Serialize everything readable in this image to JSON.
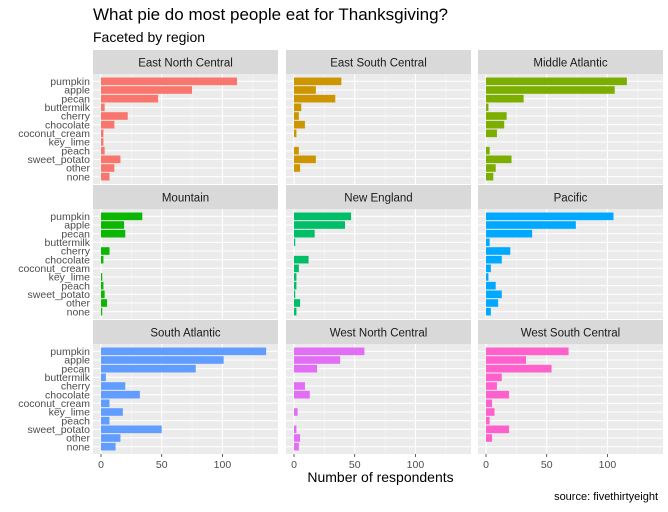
{
  "chart_data": {
    "type": "bar",
    "orientation": "horizontal",
    "title": "What pie do most people eat for Thanksgiving?",
    "subtitle": "Faceted by region",
    "xlabel": "Number of respondents",
    "ylabel": "",
    "caption": "source: fivethirtyeight",
    "xlim": [
      0,
      140
    ],
    "x_ticks": [
      0,
      50,
      100
    ],
    "categories": [
      "pumpkin",
      "apple",
      "pecan",
      "buttermilk",
      "cherry",
      "chocolate",
      "coconut_cream",
      "key_lime",
      "peach",
      "sweet_potato",
      "other",
      "none"
    ],
    "grid": true,
    "legend": "none",
    "facets": [
      {
        "name": "East North Central",
        "color": "#F8766D",
        "values": [
          112,
          75,
          47,
          3,
          22,
          11,
          2,
          2,
          3,
          16,
          11,
          7
        ]
      },
      {
        "name": "East South Central",
        "color": "#CD9600",
        "values": [
          39,
          18,
          34,
          6,
          4,
          9,
          2,
          0,
          4,
          18,
          5,
          0
        ]
      },
      {
        "name": "Middle Atlantic",
        "color": "#7CAE00",
        "values": [
          116,
          106,
          31,
          2,
          17,
          15,
          9,
          0,
          3,
          21,
          8,
          6
        ]
      },
      {
        "name": "Mountain",
        "color": "#0CB702",
        "values": [
          34,
          19,
          20,
          0,
          7,
          2,
          0,
          1,
          2,
          3,
          5,
          1
        ]
      },
      {
        "name": "New England",
        "color": "#00BE67",
        "values": [
          47,
          42,
          17,
          1,
          0,
          12,
          4,
          2,
          2,
          1,
          5,
          2
        ]
      },
      {
        "name": "Pacific",
        "color": "#00A9FF",
        "values": [
          105,
          74,
          38,
          3,
          20,
          13,
          4,
          2,
          8,
          13,
          10,
          4
        ]
      },
      {
        "name": "South Atlantic",
        "color": "#619CFF",
        "values": [
          136,
          101,
          78,
          4,
          20,
          32,
          7,
          18,
          7,
          50,
          16,
          12
        ]
      },
      {
        "name": "West North Central",
        "color": "#E36EF6",
        "values": [
          58,
          38,
          19,
          0,
          9,
          13,
          0,
          3,
          0,
          2,
          5,
          4
        ]
      },
      {
        "name": "West South Central",
        "color": "#FF61CC",
        "values": [
          68,
          33,
          54,
          13,
          9,
          19,
          5,
          7,
          3,
          19,
          5,
          0
        ]
      }
    ]
  }
}
